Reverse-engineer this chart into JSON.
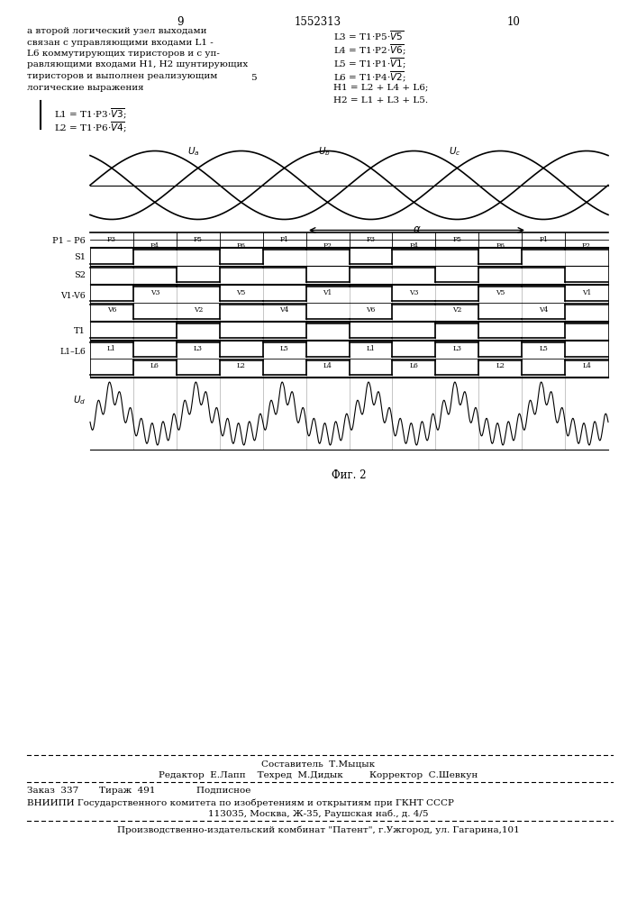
{
  "page_number_left": "9",
  "page_number_center": "1552313",
  "page_number_right": "10",
  "bg_color": "#ffffff",
  "text_color": "#000000",
  "fig_caption": "Фиг. 2",
  "footer_line1": "Составитель  Т.Мыцык",
  "footer_line2": "Редактор  Е.Лапп    Техред  М.Дидык         Корректор  С.Шевкун",
  "footer_line3": "Заказ  337       Тираж  491              Подписное",
  "footer_line4": "ВНИИПИ Государственного комитета по изобретениям и открытиям при ГКНТ СССР",
  "footer_line5": "113035, Москва, Ж-35, Раушская наб., д. 4/5",
  "footer_line6": "Производственно-издательский комбинат \"Патент\", г.Ужгород, ул. Гагарина,101"
}
